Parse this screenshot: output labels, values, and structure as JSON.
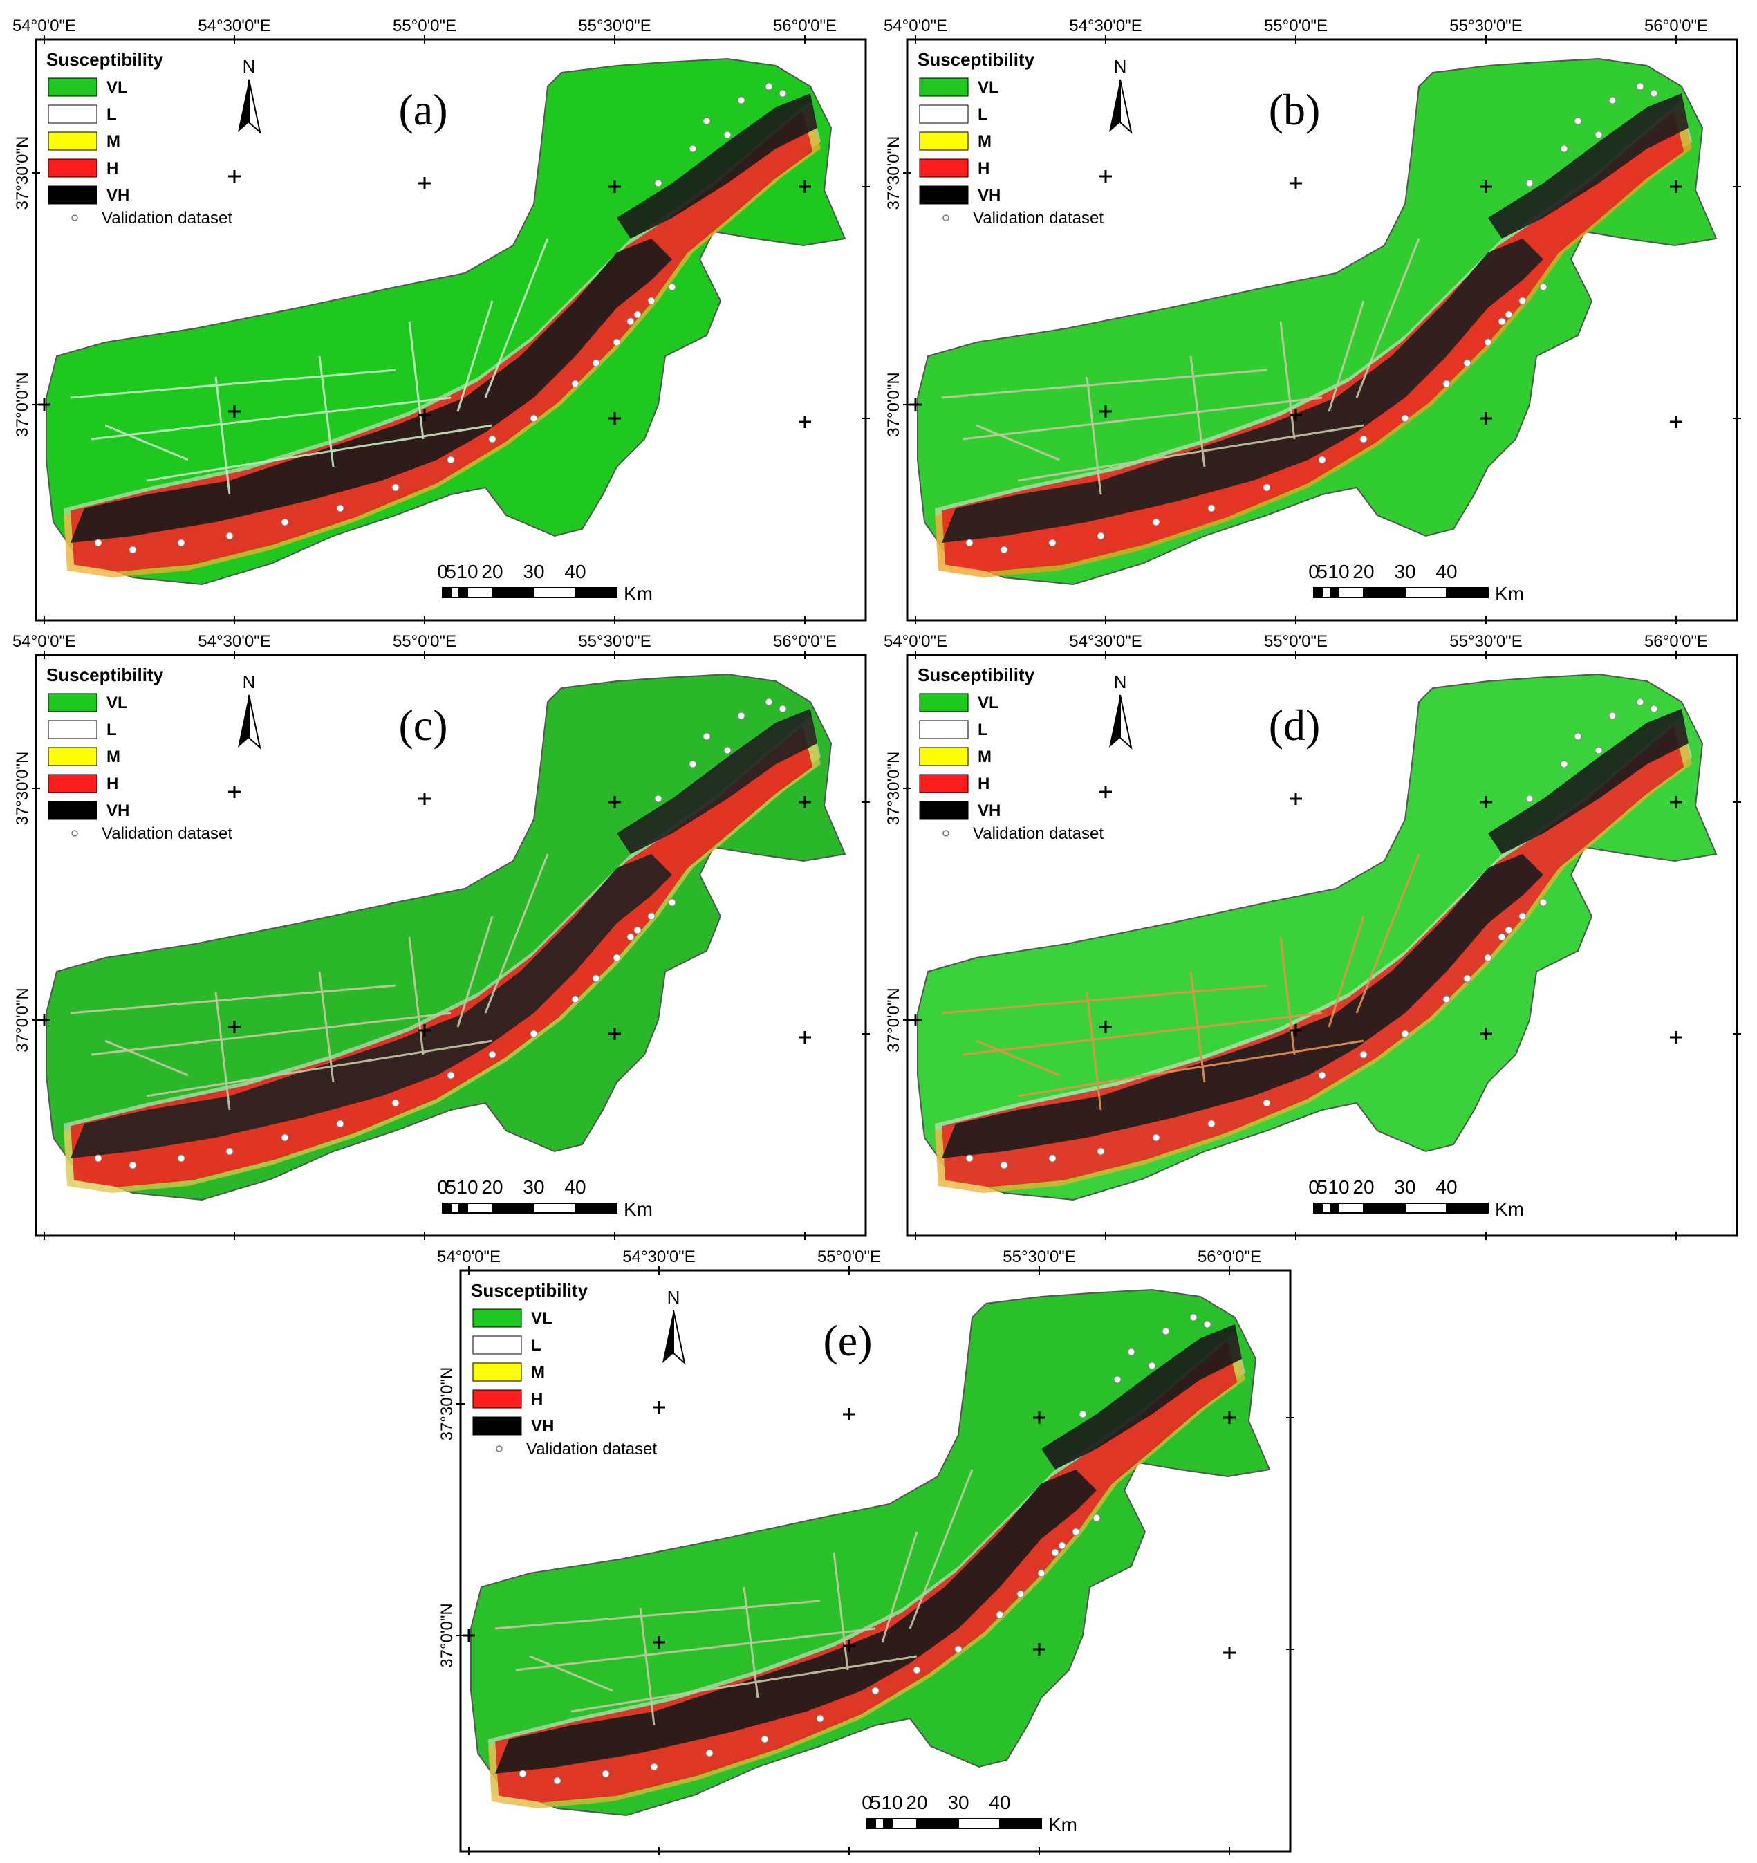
{
  "panels": [
    {
      "id": "a",
      "label": "(a)"
    },
    {
      "id": "b",
      "label": "(b)"
    },
    {
      "id": "c",
      "label": "(c)"
    },
    {
      "id": "d",
      "label": "(d)"
    },
    {
      "id": "e",
      "label": "(e)"
    }
  ],
  "map": {
    "lon_labels": [
      "54°0'0\"E",
      "54°30'0\"E",
      "55°0'0\"E",
      "55°30'0\"E",
      "56°0'0\"E"
    ],
    "lat_labels": [
      "37°30'0\"N",
      "37°0'0\"N"
    ],
    "north_label": "N"
  },
  "legend": {
    "title": "Susceptibility",
    "classes": [
      {
        "code": "VL",
        "color": "#1ec81e"
      },
      {
        "code": "L",
        "color": "#ffffff"
      },
      {
        "code": "M",
        "color": "#ffff00"
      },
      {
        "code": "H",
        "color": "#ff1e1e"
      },
      {
        "code": "VH",
        "color": "#000000"
      }
    ],
    "validation_label": "Validation dataset"
  },
  "scalebar": {
    "ticks": [
      "0",
      "5",
      "10",
      "20",
      "30",
      "40"
    ],
    "unit": "Km"
  }
}
